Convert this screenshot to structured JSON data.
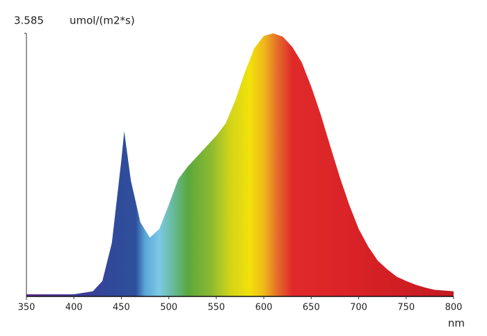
{
  "chart_data": {
    "type": "area",
    "y_label": "umol/(m2*s)",
    "x_label": "nm",
    "x": [
      350,
      400,
      410,
      420,
      430,
      440,
      450,
      453,
      460,
      470,
      480,
      490,
      500,
      510,
      520,
      530,
      540,
      550,
      560,
      570,
      580,
      590,
      600,
      610,
      620,
      630,
      640,
      650,
      660,
      670,
      680,
      690,
      700,
      710,
      720,
      730,
      740,
      750,
      760,
      770,
      780,
      790,
      800
    ],
    "values": [
      0.03,
      0.03,
      0.05,
      0.07,
      0.21,
      0.73,
      1.86,
      2.25,
      1.58,
      1.01,
      0.8,
      0.92,
      1.25,
      1.6,
      1.77,
      1.91,
      2.05,
      2.19,
      2.36,
      2.67,
      3.05,
      3.38,
      3.55,
      3.585,
      3.54,
      3.4,
      3.19,
      2.86,
      2.48,
      2.05,
      1.63,
      1.25,
      0.92,
      0.68,
      0.49,
      0.37,
      0.27,
      0.21,
      0.16,
      0.12,
      0.09,
      0.08,
      0.07
    ],
    "xlim": [
      350,
      800
    ],
    "xticks": [
      350,
      400,
      450,
      500,
      550,
      600,
      650,
      700,
      750,
      800
    ],
    "ylim": [
      0,
      3.585
    ],
    "yticks": [
      3.585
    ],
    "grid": false
  }
}
